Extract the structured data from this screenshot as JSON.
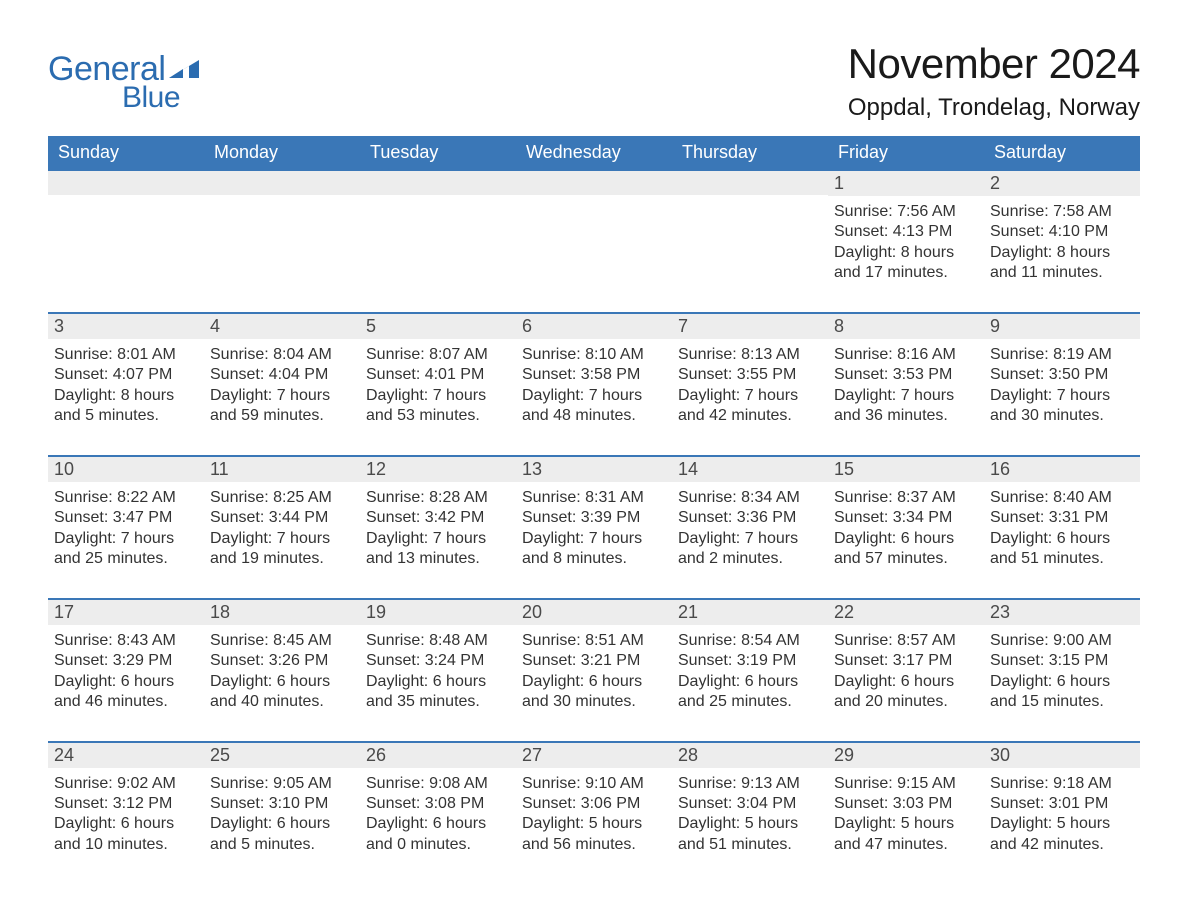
{
  "brand": {
    "text_general": "General",
    "text_blue": "Blue",
    "flag_color": "#2b6cb0"
  },
  "header": {
    "month_title": "November 2024",
    "location": "Oppdal, Trondelag, Norway"
  },
  "colors": {
    "header_bg": "#3a77b7",
    "header_text": "#ffffff",
    "daynum_bg": "#ededed",
    "border": "#3a77b7",
    "body_text": "#333333",
    "title_text": "#1a1a1a",
    "logo_text": "#2b6cb0",
    "page_bg": "#ffffff"
  },
  "typography": {
    "month_title_fontsize": 42,
    "location_fontsize": 24,
    "dow_fontsize": 18,
    "daynum_fontsize": 18,
    "detail_fontsize": 16,
    "logo_fontsize": 34
  },
  "days_of_week": [
    "Sunday",
    "Monday",
    "Tuesday",
    "Wednesday",
    "Thursday",
    "Friday",
    "Saturday"
  ],
  "weeks": [
    [
      null,
      null,
      null,
      null,
      null,
      {
        "n": "1",
        "sunrise": "7:56 AM",
        "sunset": "4:13 PM",
        "dl1": "Daylight: 8 hours",
        "dl2": "and 17 minutes."
      },
      {
        "n": "2",
        "sunrise": "7:58 AM",
        "sunset": "4:10 PM",
        "dl1": "Daylight: 8 hours",
        "dl2": "and 11 minutes."
      }
    ],
    [
      {
        "n": "3",
        "sunrise": "8:01 AM",
        "sunset": "4:07 PM",
        "dl1": "Daylight: 8 hours",
        "dl2": "and 5 minutes."
      },
      {
        "n": "4",
        "sunrise": "8:04 AM",
        "sunset": "4:04 PM",
        "dl1": "Daylight: 7 hours",
        "dl2": "and 59 minutes."
      },
      {
        "n": "5",
        "sunrise": "8:07 AM",
        "sunset": "4:01 PM",
        "dl1": "Daylight: 7 hours",
        "dl2": "and 53 minutes."
      },
      {
        "n": "6",
        "sunrise": "8:10 AM",
        "sunset": "3:58 PM",
        "dl1": "Daylight: 7 hours",
        "dl2": "and 48 minutes."
      },
      {
        "n": "7",
        "sunrise": "8:13 AM",
        "sunset": "3:55 PM",
        "dl1": "Daylight: 7 hours",
        "dl2": "and 42 minutes."
      },
      {
        "n": "8",
        "sunrise": "8:16 AM",
        "sunset": "3:53 PM",
        "dl1": "Daylight: 7 hours",
        "dl2": "and 36 minutes."
      },
      {
        "n": "9",
        "sunrise": "8:19 AM",
        "sunset": "3:50 PM",
        "dl1": "Daylight: 7 hours",
        "dl2": "and 30 minutes."
      }
    ],
    [
      {
        "n": "10",
        "sunrise": "8:22 AM",
        "sunset": "3:47 PM",
        "dl1": "Daylight: 7 hours",
        "dl2": "and 25 minutes."
      },
      {
        "n": "11",
        "sunrise": "8:25 AM",
        "sunset": "3:44 PM",
        "dl1": "Daylight: 7 hours",
        "dl2": "and 19 minutes."
      },
      {
        "n": "12",
        "sunrise": "8:28 AM",
        "sunset": "3:42 PM",
        "dl1": "Daylight: 7 hours",
        "dl2": "and 13 minutes."
      },
      {
        "n": "13",
        "sunrise": "8:31 AM",
        "sunset": "3:39 PM",
        "dl1": "Daylight: 7 hours",
        "dl2": "and 8 minutes."
      },
      {
        "n": "14",
        "sunrise": "8:34 AM",
        "sunset": "3:36 PM",
        "dl1": "Daylight: 7 hours",
        "dl2": "and 2 minutes."
      },
      {
        "n": "15",
        "sunrise": "8:37 AM",
        "sunset": "3:34 PM",
        "dl1": "Daylight: 6 hours",
        "dl2": "and 57 minutes."
      },
      {
        "n": "16",
        "sunrise": "8:40 AM",
        "sunset": "3:31 PM",
        "dl1": "Daylight: 6 hours",
        "dl2": "and 51 minutes."
      }
    ],
    [
      {
        "n": "17",
        "sunrise": "8:43 AM",
        "sunset": "3:29 PM",
        "dl1": "Daylight: 6 hours",
        "dl2": "and 46 minutes."
      },
      {
        "n": "18",
        "sunrise": "8:45 AM",
        "sunset": "3:26 PM",
        "dl1": "Daylight: 6 hours",
        "dl2": "and 40 minutes."
      },
      {
        "n": "19",
        "sunrise": "8:48 AM",
        "sunset": "3:24 PM",
        "dl1": "Daylight: 6 hours",
        "dl2": "and 35 minutes."
      },
      {
        "n": "20",
        "sunrise": "8:51 AM",
        "sunset": "3:21 PM",
        "dl1": "Daylight: 6 hours",
        "dl2": "and 30 minutes."
      },
      {
        "n": "21",
        "sunrise": "8:54 AM",
        "sunset": "3:19 PM",
        "dl1": "Daylight: 6 hours",
        "dl2": "and 25 minutes."
      },
      {
        "n": "22",
        "sunrise": "8:57 AM",
        "sunset": "3:17 PM",
        "dl1": "Daylight: 6 hours",
        "dl2": "and 20 minutes."
      },
      {
        "n": "23",
        "sunrise": "9:00 AM",
        "sunset": "3:15 PM",
        "dl1": "Daylight: 6 hours",
        "dl2": "and 15 minutes."
      }
    ],
    [
      {
        "n": "24",
        "sunrise": "9:02 AM",
        "sunset": "3:12 PM",
        "dl1": "Daylight: 6 hours",
        "dl2": "and 10 minutes."
      },
      {
        "n": "25",
        "sunrise": "9:05 AM",
        "sunset": "3:10 PM",
        "dl1": "Daylight: 6 hours",
        "dl2": "and 5 minutes."
      },
      {
        "n": "26",
        "sunrise": "9:08 AM",
        "sunset": "3:08 PM",
        "dl1": "Daylight: 6 hours",
        "dl2": "and 0 minutes."
      },
      {
        "n": "27",
        "sunrise": "9:10 AM",
        "sunset": "3:06 PM",
        "dl1": "Daylight: 5 hours",
        "dl2": "and 56 minutes."
      },
      {
        "n": "28",
        "sunrise": "9:13 AM",
        "sunset": "3:04 PM",
        "dl1": "Daylight: 5 hours",
        "dl2": "and 51 minutes."
      },
      {
        "n": "29",
        "sunrise": "9:15 AM",
        "sunset": "3:03 PM",
        "dl1": "Daylight: 5 hours",
        "dl2": "and 47 minutes."
      },
      {
        "n": "30",
        "sunrise": "9:18 AM",
        "sunset": "3:01 PM",
        "dl1": "Daylight: 5 hours",
        "dl2": "and 42 minutes."
      }
    ]
  ],
  "labels": {
    "sunrise_prefix": "Sunrise: ",
    "sunset_prefix": "Sunset: "
  }
}
